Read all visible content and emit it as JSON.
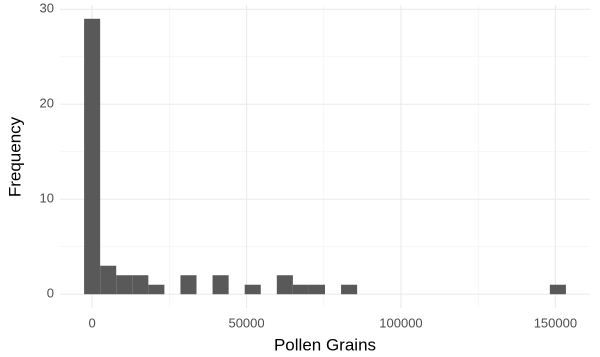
{
  "chart_data": {
    "type": "histogram",
    "x_label": "Pollen Grains",
    "y_label": "Frequency",
    "bins": [
      -2600,
      2600,
      7800,
      13000,
      18200,
      23400,
      28600,
      33800,
      39000,
      44200,
      49400,
      54600,
      59800,
      65000,
      70200,
      75400,
      80600,
      85800,
      91000,
      96200,
      101400,
      106600,
      111800,
      117000,
      122200,
      127400,
      132600,
      137800,
      143000,
      148200,
      153400
    ],
    "values": [
      29,
      3,
      2,
      2,
      1,
      0,
      2,
      0,
      2,
      0,
      1,
      0,
      2,
      1,
      1,
      0,
      1,
      0,
      0,
      0,
      0,
      0,
      0,
      0,
      0,
      0,
      0,
      0,
      0,
      1
    ],
    "color": "#595959",
    "xlim": [
      -10400,
      161200
    ],
    "xticks": [
      0,
      50000,
      100000,
      150000
    ],
    "ylim": [
      -1.45,
      30.45
    ],
    "yticks": [
      0,
      10,
      20,
      30
    ],
    "grid": true
  }
}
